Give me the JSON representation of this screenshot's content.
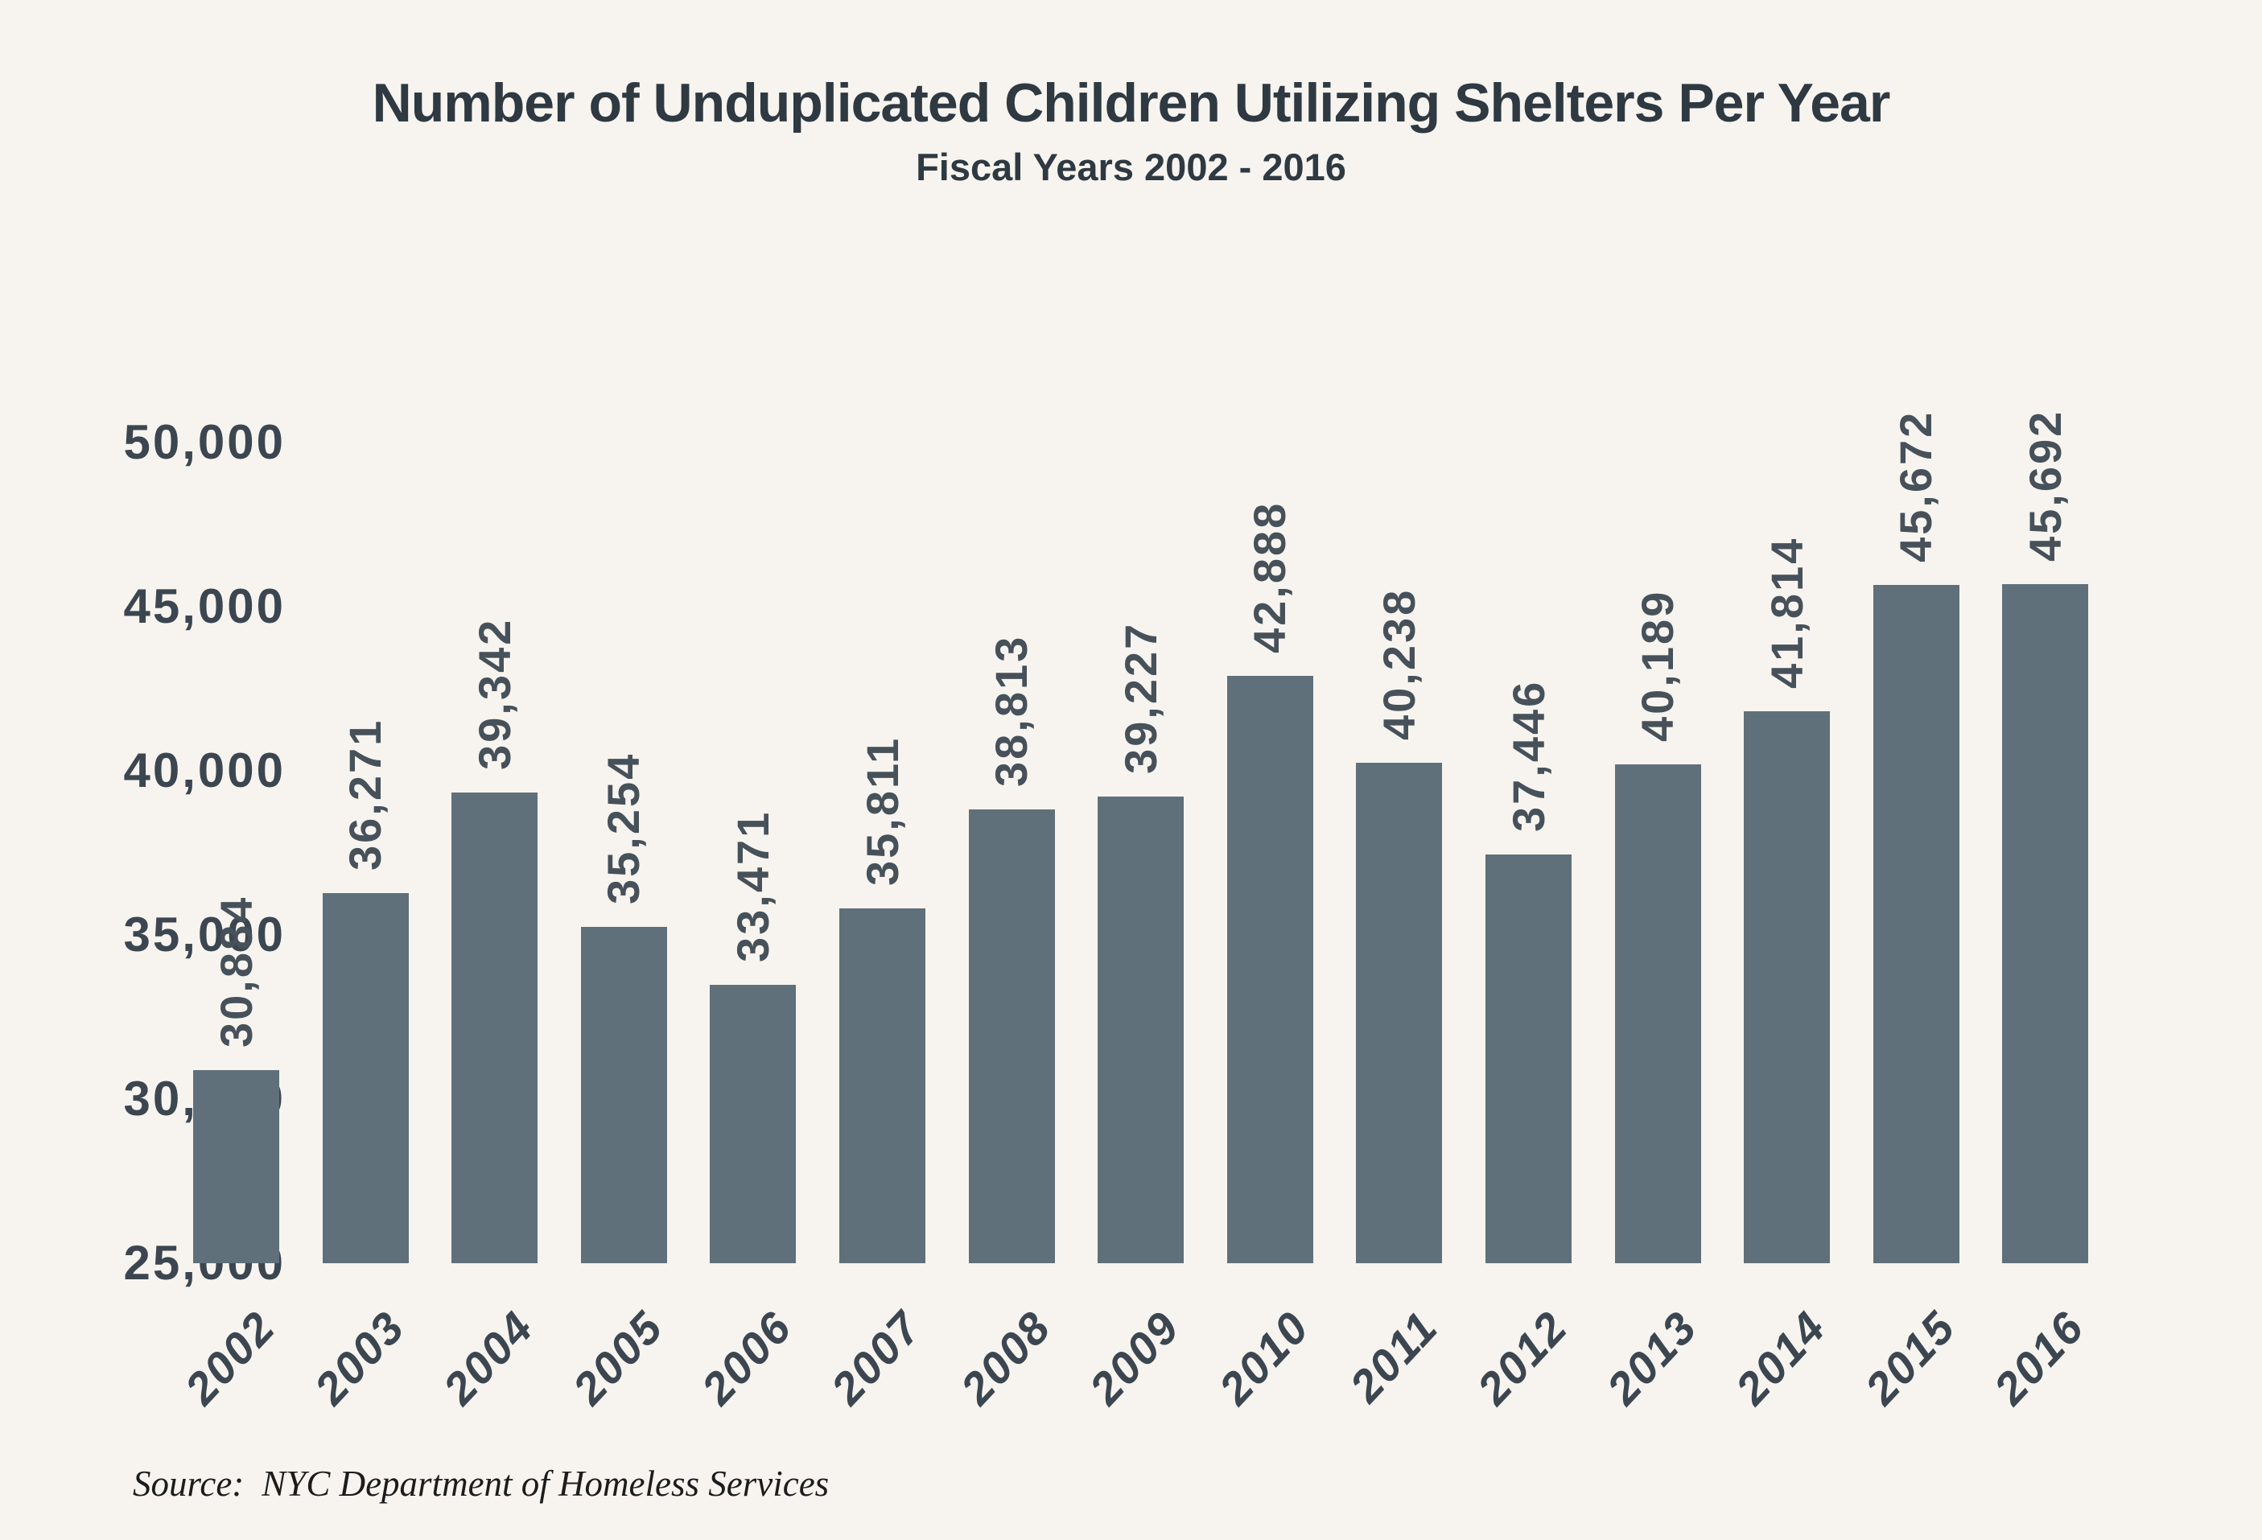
{
  "header": {
    "title": "Number of Unduplicated Children Utilizing Shelters Per Year",
    "subtitle": "Fiscal Years 2002 - 2016"
  },
  "source": {
    "prefix": "Source:",
    "text": "NYC Department of Homeless Services"
  },
  "colors": {
    "background": "#f7f4ef",
    "bar": "#60707a",
    "title_text": "#2e3942",
    "axis_text": "#3b4650",
    "value_label_text": "#46515a",
    "source_text": "#1c1c1c"
  },
  "chart_data": {
    "type": "bar",
    "title": "Number of Unduplicated Children Utilizing Shelters Per Year",
    "subtitle": "Fiscal Years 2002 - 2016",
    "xlabel": "",
    "ylabel": "",
    "categories": [
      "2002",
      "2003",
      "2004",
      "2005",
      "2006",
      "2007",
      "2008",
      "2009",
      "2010",
      "2011",
      "2012",
      "2013",
      "2014",
      "2015",
      "2016"
    ],
    "values": [
      30884,
      36271,
      39342,
      35254,
      33471,
      35811,
      38813,
      39227,
      42888,
      40238,
      37446,
      40189,
      41814,
      45672,
      45692
    ],
    "value_labels": [
      "30,884",
      "36,271",
      "39,342",
      "35,254",
      "33,471",
      "35,811",
      "38,813",
      "39,227",
      "42,888",
      "40,238",
      "37,446",
      "40,189",
      "41,814",
      "45,672",
      "45,692"
    ],
    "ylim": [
      25000,
      50000
    ],
    "yticks": [
      {
        "value": 25000,
        "label": "25,000"
      },
      {
        "value": 30000,
        "label": "30,000"
      },
      {
        "value": 35000,
        "label": "35,000"
      },
      {
        "value": 40000,
        "label": "40,000"
      },
      {
        "value": 45000,
        "label": "45,000"
      },
      {
        "value": 50000,
        "label": "50,000"
      }
    ],
    "grid": false,
    "legend": false,
    "bar_label_rotation_deg": -90,
    "x_tick_rotation_deg": -47,
    "annotation": "Source:  NYC Department of Homeless Services"
  }
}
